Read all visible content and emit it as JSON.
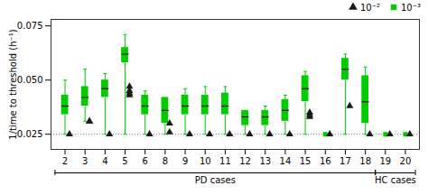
{
  "chart_data": {
    "type": "box",
    "ylabel": "1/time to threshold (h⁻¹)",
    "categories": [
      "2",
      "3",
      "4",
      "5",
      "6",
      "8",
      "9",
      "10",
      "11",
      "12",
      "13",
      "14",
      "15",
      "16",
      "17",
      "18",
      "19",
      "20"
    ],
    "ylim": [
      0.018,
      0.078
    ],
    "yticks": [
      0.025,
      {
        "value": 0.05,
        "label": "0.050"
      },
      0.075
    ],
    "legend": "upper right",
    "reference_lines": [
      {
        "y": 0.025,
        "color": "gray",
        "line_style": "dotted"
      }
    ],
    "groups": [
      {
        "label": "PD cases",
        "categories": [
          "2",
          "3",
          "4",
          "5",
          "6",
          "8",
          "9",
          "10",
          "11",
          "12",
          "13",
          "14",
          "15",
          "16",
          "17",
          "18"
        ]
      },
      {
        "label": "HC cases",
        "categories": [
          "19",
          "20"
        ]
      }
    ],
    "series": [
      {
        "name": "10⁻²",
        "type": "scatter",
        "marker": "triangle",
        "color": "#1a1a1a",
        "values": [
          [
            0.025
          ],
          [
            0.031,
            0.031
          ],
          [
            0.025
          ],
          [
            0.043,
            0.044,
            0.045,
            0.047
          ],
          [
            0.025
          ],
          [
            0.026,
            0.03
          ],
          [
            0.025
          ],
          [
            0.025
          ],
          [
            0.025
          ],
          [
            0.025
          ],
          [
            0.025
          ],
          [
            0.025
          ],
          [
            0.033,
            0.034,
            0.035
          ],
          [
            0.025
          ],
          [
            0.038
          ],
          [
            0.025
          ],
          [
            0.025
          ],
          [
            0.025
          ]
        ]
      },
      {
        "name": "10⁻³",
        "type": "box",
        "marker": "square",
        "color": "#00CC00",
        "median": [
          0.038,
          0.042,
          0.046,
          0.062,
          0.038,
          0.036,
          0.038,
          0.038,
          0.038,
          0.033,
          0.033,
          0.036,
          0.046,
          0.025,
          0.055,
          0.04,
          0.025,
          0.025
        ],
        "q1": [
          0.034,
          0.038,
          0.042,
          0.058,
          0.034,
          0.03,
          0.034,
          0.034,
          0.034,
          0.029,
          0.029,
          0.031,
          0.04,
          0.025,
          0.05,
          0.03,
          0.025,
          0.025
        ],
        "q3": [
          0.043,
          0.047,
          0.05,
          0.065,
          0.043,
          0.042,
          0.043,
          0.043,
          0.044,
          0.036,
          0.036,
          0.041,
          0.052,
          0.025,
          0.06,
          0.052,
          0.025,
          0.025
        ],
        "whislo": [
          0.025,
          0.031,
          0.025,
          0.025,
          0.025,
          0.025,
          0.025,
          0.025,
          0.025,
          0.025,
          0.025,
          0.025,
          0.025,
          0.025,
          0.025,
          0.025,
          0.025,
          0.025
        ],
        "whishi": [
          0.05,
          0.055,
          0.053,
          0.071,
          0.045,
          0.042,
          0.046,
          0.047,
          0.047,
          0.036,
          0.038,
          0.043,
          0.054,
          0.025,
          0.062,
          0.056,
          0.025,
          0.025
        ]
      }
    ]
  }
}
